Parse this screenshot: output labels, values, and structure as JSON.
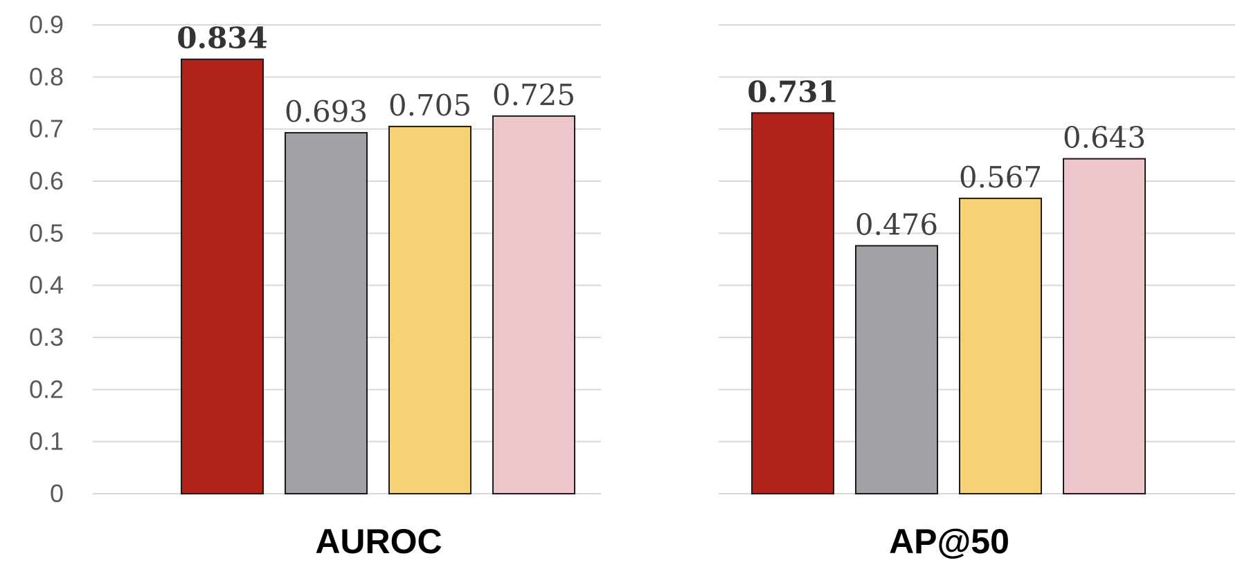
{
  "chart_data": {
    "type": "bar",
    "ylim": [
      0,
      0.9
    ],
    "yticks": [
      "0",
      "0.1",
      "0.2",
      "0.3",
      "0.4",
      "0.5",
      "0.6",
      "0.7",
      "0.8",
      "0.9"
    ],
    "grid": true,
    "series_colors": [
      "#b0221a",
      "#a0a0a5",
      "#f6d275",
      "#edc5ca"
    ],
    "panels": [
      {
        "xlabel": "AUROC",
        "values": [
          0.834,
          0.693,
          0.705,
          0.725
        ],
        "labels": [
          "0.834",
          "0.693",
          "0.705",
          "0.725"
        ],
        "best_index": 0
      },
      {
        "xlabel": "AP@50",
        "values": [
          0.731,
          0.476,
          0.567,
          0.643
        ],
        "labels": [
          "0.731",
          "0.476",
          "0.567",
          "0.643"
        ],
        "best_index": 0
      }
    ]
  }
}
